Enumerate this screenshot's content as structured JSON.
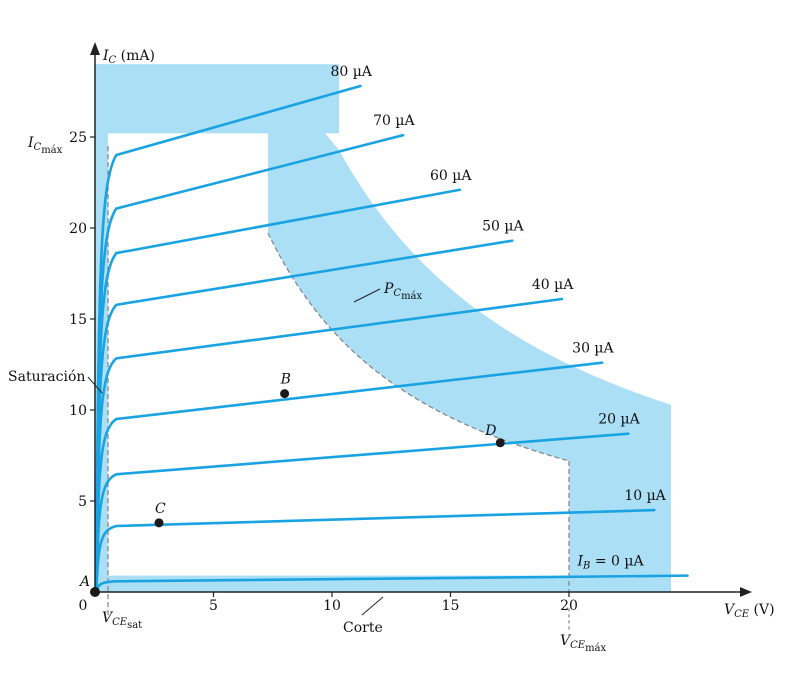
{
  "chart_data": {
    "type": "line",
    "xlabel_main": "V",
    "xlabel_sub": "CE",
    "xlabel_unit": "(V)",
    "ylabel_main": "I",
    "ylabel_sub": "C",
    "ylabel_unit": "(mA)",
    "xlim": [
      0,
      27
    ],
    "ylim": [
      0,
      29
    ],
    "x_ticks": [
      0,
      5,
      10,
      15,
      20
    ],
    "y_ticks": [
      5,
      10,
      15,
      20,
      25
    ],
    "series": [
      {
        "name": "I_B = 0 µA",
        "label_main": "I",
        "label_sub": "B",
        "label_rest": " = 0 µA",
        "knee": 0.6,
        "end_x": 25,
        "end_y": 0.9
      },
      {
        "name": "10 µA",
        "label_rest": "10 µA",
        "knee": 3.7,
        "end_x": 23.6,
        "end_y": 4.5
      },
      {
        "name": "20 µA",
        "label_rest": "20 µA",
        "knee": 6.6,
        "end_x": 22.5,
        "end_y": 8.7
      },
      {
        "name": "30 µA",
        "label_rest": "30 µA",
        "knee": 9.7,
        "end_x": 21.4,
        "end_y": 12.6
      },
      {
        "name": "40 µA",
        "label_rest": "40 µA",
        "knee": 13.1,
        "end_x": 19.7,
        "end_y": 16.1
      },
      {
        "name": "50 µA",
        "label_rest": "50 µA",
        "knee": 16.1,
        "end_x": 17.6,
        "end_y": 19.3
      },
      {
        "name": "60 µA",
        "label_rest": "60 µA",
        "knee": 19.0,
        "end_x": 15.4,
        "end_y": 22.1
      },
      {
        "name": "70 µA",
        "label_rest": "70 µA",
        "knee": 21.5,
        "end_x": 13.0,
        "end_y": 25.1
      },
      {
        "name": "80 µA",
        "label_rest": "80 µA",
        "knee": 24.5,
        "end_x": 11.2,
        "end_y": 27.8
      }
    ],
    "points": [
      {
        "name": "A",
        "x": 0,
        "y": 0
      },
      {
        "name": "B",
        "x": 8,
        "y": 10.9
      },
      {
        "name": "C",
        "x": 2.7,
        "y": 3.8
      },
      {
        "name": "D",
        "x": 17.1,
        "y": 8.2
      }
    ],
    "limits": {
      "ic_max": 25.2,
      "vce_max": 20,
      "vce_sat": 0.55,
      "pc_max_mw": 144,
      "ic_max_label_main": "I",
      "ic_max_label_sub1": "C",
      "ic_max_label_sub2": "máx",
      "vce_max_label_main": "V",
      "vce_max_label_sub1": "CE",
      "vce_max_label_sub2": "máx",
      "vce_sat_label_main": "V",
      "vce_sat_label_sub1": "CE",
      "vce_sat_label_sub2": "sat",
      "pc_max_label_main": "P",
      "pc_max_label_sub1": "C",
      "pc_max_label_sub2": "máx"
    },
    "annotations": {
      "saturation": "Saturación",
      "cutoff": "Corte"
    },
    "colors": {
      "curve": "#1aa3e2",
      "region": "#abdff6",
      "point": "#1a1a1a",
      "axis": "#222222",
      "dash": "#888888"
    }
  }
}
